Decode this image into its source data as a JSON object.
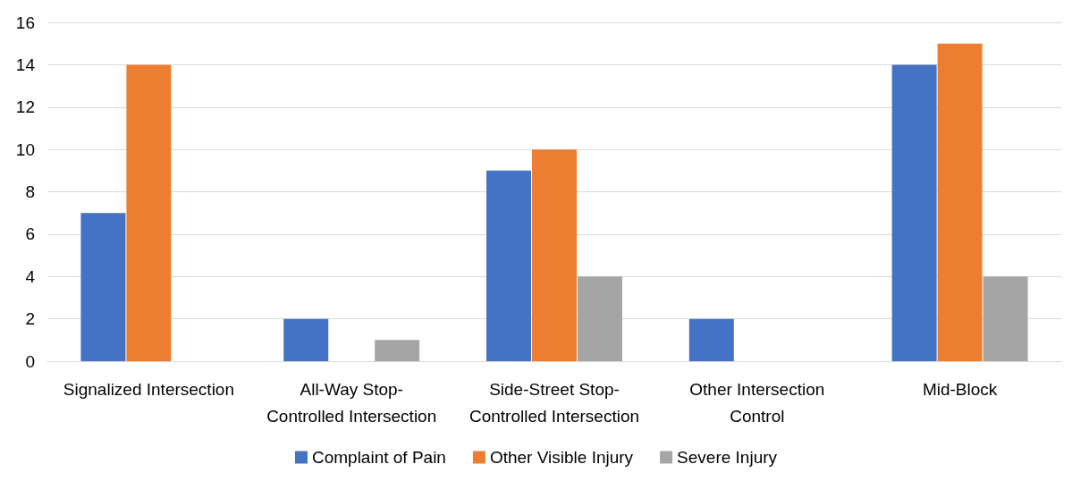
{
  "chart_data": {
    "type": "bar",
    "categories": [
      "Signalized Intersection",
      "All-Way Stop-\nControlled Intersection",
      "Side-Street Stop-\nControlled Intersection",
      "Other Intersection\nControl",
      "Mid-Block"
    ],
    "series": [
      {
        "name": "Complaint of Pain",
        "color": "#4472c4",
        "values": [
          7,
          2,
          9,
          2,
          14
        ]
      },
      {
        "name": "Other Visible Injury",
        "color": "#ed7d31",
        "values": [
          14,
          0,
          10,
          0,
          15
        ]
      },
      {
        "name": "Severe Injury",
        "color": "#a5a5a5",
        "values": [
          0,
          1,
          4,
          0,
          4
        ]
      }
    ],
    "ylim": [
      0,
      16
    ],
    "yticks": [
      0,
      2,
      4,
      6,
      8,
      10,
      12,
      14,
      16
    ],
    "grid": "y",
    "legend": "bottom"
  }
}
